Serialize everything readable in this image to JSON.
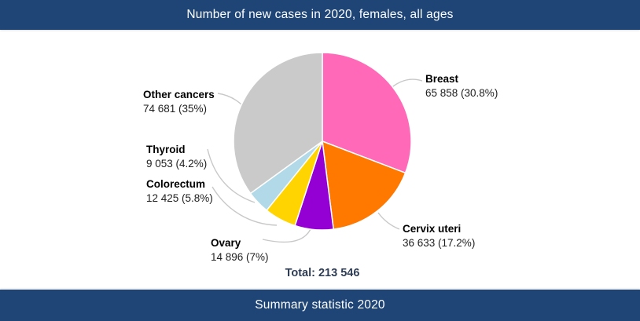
{
  "header": {
    "title": "Number of new cases in 2020, females, all ages"
  },
  "footer": {
    "title": "Summary statistic 2020"
  },
  "theme": {
    "bar_color": "#1f4577",
    "bar_text_color": "#ffffff",
    "leader_line_color": "#c8c8c8",
    "slice_stroke_color": "#ffffff",
    "total_text_color": "#2e3d54"
  },
  "chart_data": {
    "type": "pie",
    "title": "Number of new cases in 2020, females, all ages",
    "direction": "clockwise",
    "start_angle_deg": 0,
    "legend_position": "outside-labels-with-leader-lines",
    "total_text": "Total: 213 546",
    "total_value": 213546,
    "slices": [
      {
        "label": "Breast",
        "value": 65858,
        "value_text": "65 858",
        "pct": 30.8,
        "pct_text": "30.8%",
        "color": "#ff69b8"
      },
      {
        "label": "Cervix uteri",
        "value": 36633,
        "value_text": "36 633",
        "pct": 17.2,
        "pct_text": "17.2%",
        "color": "#ff7800"
      },
      {
        "label": "Ovary",
        "value": 14896,
        "value_text": "14 896",
        "pct": 7.0,
        "pct_text": "7%",
        "color": "#9400d3"
      },
      {
        "label": "Colorectum",
        "value": 12425,
        "value_text": "12 425",
        "pct": 5.8,
        "pct_text": "5.8%",
        "color": "#ffd400"
      },
      {
        "label": "Thyroid",
        "value": 9053,
        "value_text": "9 053",
        "pct": 4.2,
        "pct_text": "4.2%",
        "color": "#b2d9e8"
      },
      {
        "label": "Other cancers",
        "value": 74681,
        "value_text": "74 681",
        "pct": 35.0,
        "pct_text": "35%",
        "color": "#cacaca"
      }
    ]
  }
}
